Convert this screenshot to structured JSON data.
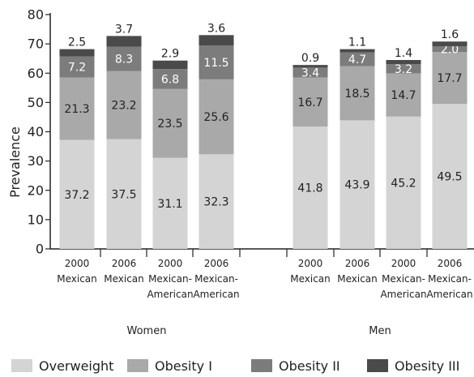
{
  "chart_data": {
    "type": "bar",
    "stacked": true,
    "ylabel": "Prevalence",
    "ylim": [
      0,
      80
    ],
    "yticks": [
      0,
      10,
      20,
      30,
      40,
      50,
      60,
      70,
      80
    ],
    "grid": false,
    "legend_position": "bottom",
    "categories": [
      {
        "year": "2000",
        "group1": "Mexican",
        "group2": ""
      },
      {
        "year": "2006",
        "group1": "Mexican",
        "group2": ""
      },
      {
        "year": "2000",
        "group1": "Mexican-",
        "group2": "American"
      },
      {
        "year": "2006",
        "group1": "Mexican-",
        "group2": "American"
      },
      {
        "year": "2000",
        "group1": "Mexican",
        "group2": ""
      },
      {
        "year": "2006",
        "group1": "Mexican",
        "group2": ""
      },
      {
        "year": "2000",
        "group1": "Mexican-",
        "group2": "American"
      },
      {
        "year": "2006",
        "group1": "Mexican-",
        "group2": "American"
      }
    ],
    "groups": [
      {
        "label": "Women",
        "categories": [
          0,
          1,
          2,
          3
        ]
      },
      {
        "label": "Men",
        "categories": [
          4,
          5,
          6,
          7
        ]
      }
    ],
    "series": [
      {
        "name": "Overweight",
        "color": "#d4d4d4",
        "label_color": "#222222",
        "values": [
          37.2,
          37.5,
          31.1,
          32.3,
          41.8,
          43.9,
          45.2,
          49.5
        ],
        "labels": [
          "37.2",
          "37.5",
          "31.1",
          "32.3",
          "41.8",
          "43.9",
          "45.2",
          "49.5"
        ]
      },
      {
        "name": "Obesity I",
        "color": "#a9a9a9",
        "label_color": "#222222",
        "values": [
          21.3,
          23.2,
          23.5,
          25.6,
          16.7,
          18.5,
          14.7,
          17.7
        ],
        "labels": [
          "21.3",
          "23.2",
          "23.5",
          "25.6",
          "16.7",
          "18.5",
          "14.7",
          "17.7"
        ]
      },
      {
        "name": "Obesity II",
        "color": "#7c7c7c",
        "label_color": "#ffffff",
        "values": [
          7.2,
          8.3,
          6.8,
          11.5,
          3.4,
          4.7,
          3.2,
          2.0
        ],
        "labels": [
          "7.2",
          "8.3",
          "6.8",
          "11.5",
          "3.4",
          "4.7",
          "3.2",
          "2.0"
        ]
      },
      {
        "name": "Obesity III",
        "color": "#4a4a4a",
        "label_color": "#222222",
        "values": [
          2.5,
          3.7,
          2.9,
          3.6,
          0.9,
          1.1,
          1.4,
          1.6
        ],
        "labels": [
          "2.5",
          "3.7",
          "2.9",
          "3.6",
          "0.9",
          "1.1",
          "1.4",
          "1.6"
        ]
      }
    ]
  }
}
